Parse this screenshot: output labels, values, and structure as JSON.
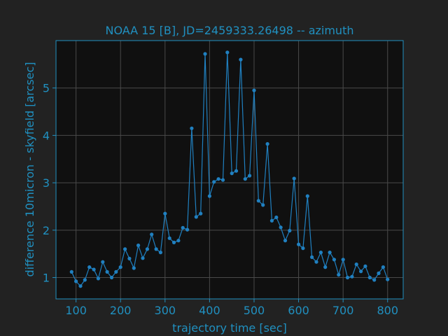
{
  "colors": {
    "figure_bg": "#222222",
    "axes_bg": "#101010",
    "spine": "#2090c0",
    "text": "#2090c0",
    "grid": "#4a4a4a",
    "series": "#2080c0"
  },
  "chart_data": {
    "type": "line",
    "title": "NOAA 15 [B], JD=2459333.26498 -- azimuth",
    "xlabel": "trajectory time [sec]",
    "ylabel": "difference 10micron - skyfield [arcsec]",
    "xlim": [
      55,
      835
    ],
    "ylim": [
      0.55,
      6.0
    ],
    "xticks": [
      100,
      200,
      300,
      400,
      500,
      600,
      700,
      800
    ],
    "yticks": [
      1,
      2,
      3,
      4,
      5
    ],
    "grid": true,
    "marker": "circle",
    "series": [
      {
        "x": [
          90,
          100,
          110,
          120,
          130,
          140,
          150,
          160,
          170,
          180,
          190,
          200,
          210,
          220,
          230,
          240,
          250,
          260,
          270,
          280,
          290,
          300,
          310,
          320,
          330,
          340,
          350,
          360,
          370,
          380,
          390,
          400,
          410,
          420,
          430,
          440,
          450,
          460,
          470,
          480,
          490,
          500,
          510,
          520,
          530,
          540,
          550,
          560,
          570,
          580,
          590,
          600,
          610,
          620,
          630,
          640,
          650,
          660,
          670,
          680,
          690,
          700,
          710,
          720,
          730,
          740,
          750,
          760,
          770,
          780,
          790,
          800
        ],
        "y": [
          1.12,
          0.92,
          0.82,
          0.95,
          1.22,
          1.17,
          0.98,
          1.33,
          1.12,
          1.0,
          1.12,
          1.22,
          1.6,
          1.4,
          1.2,
          1.68,
          1.41,
          1.6,
          1.91,
          1.6,
          1.53,
          2.35,
          1.83,
          1.74,
          1.78,
          2.05,
          2.01,
          4.15,
          2.28,
          2.35,
          5.72,
          2.72,
          3.02,
          3.08,
          3.06,
          5.75,
          3.2,
          3.25,
          5.6,
          3.08,
          3.15,
          4.95,
          2.62,
          2.53,
          3.82,
          2.2,
          2.27,
          2.06,
          1.78,
          1.99,
          3.09,
          1.7,
          1.62,
          2.72,
          1.43,
          1.33,
          1.53,
          1.22,
          1.53,
          1.38,
          1.06,
          1.38,
          1.0,
          1.02,
          1.28,
          1.13,
          1.24,
          1.0,
          0.95,
          1.09,
          1.22,
          0.96
        ]
      }
    ]
  }
}
